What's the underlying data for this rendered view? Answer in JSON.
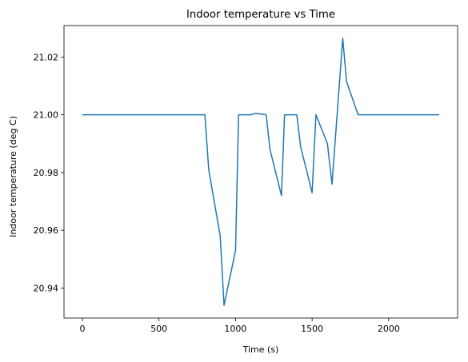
{
  "chart_data": {
    "type": "line",
    "title": "Indoor temperature vs Time",
    "xlabel": "Time (s)",
    "ylabel": "Indoor temperature (deg C)",
    "xlim": [
      -120,
      2450
    ],
    "ylim": [
      20.9296,
      21.0309
    ],
    "xticks": [
      0,
      500,
      1000,
      1500,
      2000
    ],
    "yticks": [
      20.94,
      20.96,
      20.98,
      21.0,
      21.02
    ],
    "ytick_labels": [
      "20.94",
      "20.96",
      "20.98",
      "21.00",
      "21.02"
    ],
    "grid": false,
    "legend": "none",
    "color": "#1f77b4",
    "series": [
      {
        "x": [
          0,
          800,
          825,
          900,
          925,
          1000,
          1020,
          1100,
          1130,
          1200,
          1225,
          1300,
          1320,
          1400,
          1425,
          1500,
          1525,
          1600,
          1630,
          1700,
          1725,
          1800,
          1820,
          2330
        ],
        "y": [
          21.0,
          21.0,
          20.981,
          20.958,
          20.934,
          20.953,
          21.0,
          21.0,
          21.0005,
          21.0,
          20.988,
          20.972,
          21.0,
          21.0,
          20.989,
          20.973,
          21.0,
          20.99,
          20.976,
          21.0265,
          21.0115,
          21.0,
          21.0,
          21.0
        ]
      }
    ]
  }
}
